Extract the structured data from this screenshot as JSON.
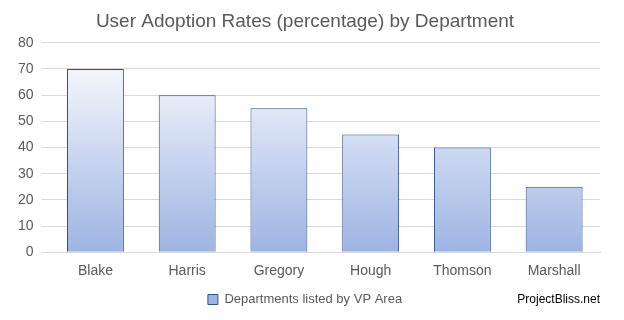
{
  "chart_data": {
    "type": "bar",
    "title": "User Adoption Rates (percentage) by Department",
    "categories": [
      "Blake",
      "Harris",
      "Gregory",
      "Hough",
      "Thomson",
      "Marshall"
    ],
    "series": [
      {
        "name": "Departments listed by VP Area",
        "color": "#9db4e3",
        "values": [
          70,
          60,
          55,
          45,
          40,
          25
        ]
      }
    ],
    "ylim": [
      0,
      80
    ],
    "yticks": [
      0,
      10,
      20,
      30,
      40,
      50,
      60,
      70,
      80
    ],
    "grid": true,
    "legend": "bottom",
    "annotations": [
      "ProjectBliss.net"
    ]
  }
}
